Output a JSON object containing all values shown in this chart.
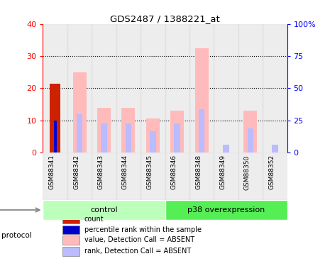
{
  "title": "GDS2487 / 1388221_at",
  "samples": [
    "GSM88341",
    "GSM88342",
    "GSM88343",
    "GSM88344",
    "GSM88345",
    "GSM88346",
    "GSM88348",
    "GSM88349",
    "GSM88350",
    "GSM88352"
  ],
  "count_values": [
    21.5,
    0,
    0,
    0,
    0,
    0,
    0,
    0,
    0,
    0
  ],
  "percentile_rank": [
    10,
    0,
    0,
    0,
    0,
    0,
    0,
    0,
    0,
    0
  ],
  "value_absent": [
    0,
    25,
    14,
    14,
    10.5,
    13,
    32.5,
    0,
    13,
    0
  ],
  "rank_absent": [
    0,
    12,
    9,
    9,
    6.5,
    9,
    13.5,
    2.5,
    7.5,
    2.5
  ],
  "groups": [
    {
      "label": "control",
      "start": 0,
      "end": 4,
      "color": "#bbffbb"
    },
    {
      "label": "p38 overexpression",
      "start": 5,
      "end": 9,
      "color": "#55ee55"
    }
  ],
  "ylim_left": [
    0,
    40
  ],
  "ylim_right": [
    0,
    100
  ],
  "yticks_left": [
    0,
    10,
    20,
    30,
    40
  ],
  "yticks_right": [
    0,
    25,
    50,
    75,
    100
  ],
  "ytick_labels_right": [
    "0",
    "25",
    "50",
    "75",
    "100%"
  ],
  "color_count": "#cc2200",
  "color_percentile": "#0000cc",
  "color_value_absent": "#ffbbbb",
  "color_rank_absent": "#bbbbff",
  "col_bg_color": "#dddddd",
  "legend_items": [
    {
      "label": "count",
      "color": "#cc2200"
    },
    {
      "label": "percentile rank within the sample",
      "color": "#0000cc"
    },
    {
      "label": "value, Detection Call = ABSENT",
      "color": "#ffbbbb"
    },
    {
      "label": "rank, Detection Call = ABSENT",
      "color": "#bbbbff"
    }
  ]
}
